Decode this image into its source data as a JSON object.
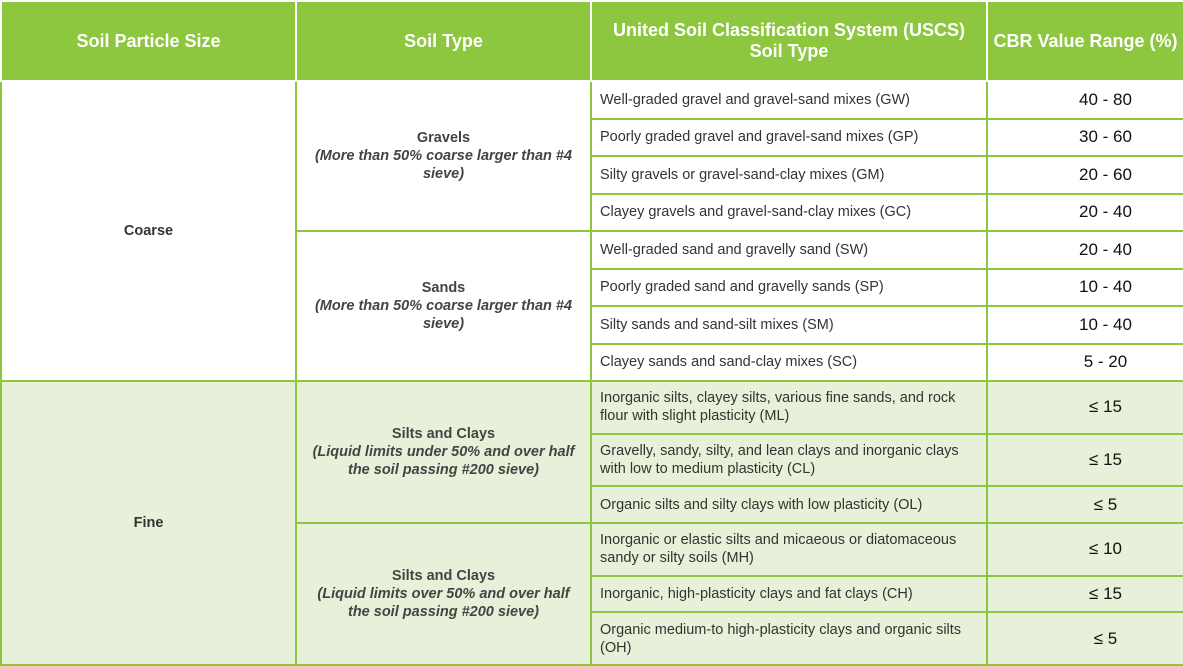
{
  "headers": {
    "particle_size": "Soil Particle Size",
    "soil_type": "Soil Type",
    "uscs": "United Soil Classification System (USCS) Soil Type",
    "cbr": "CBR Value Range (%)"
  },
  "groups": {
    "coarse": "Coarse",
    "fine": "Fine"
  },
  "types": {
    "gravels": {
      "title": "Gravels",
      "note": "(More than 50% coarse larger than #4 sieve)"
    },
    "sands": {
      "title": "Sands",
      "note": "(More than 50% coarse larger than #4 sieve)"
    },
    "silts_low": {
      "title": "Silts and Clays",
      "note": "(Liquid limits under 50% and over half the soil passing #200 sieve)"
    },
    "silts_high": {
      "title": "Silts and Clays",
      "note": "(Liquid limits over 50% and over half the soil passing #200 sieve)"
    }
  },
  "rows": [
    {
      "uscs": "Well-graded gravel and gravel-sand mixes (GW)",
      "cbr": "40 - 80"
    },
    {
      "uscs": "Poorly graded gravel and gravel-sand mixes (GP)",
      "cbr": "30 - 60"
    },
    {
      "uscs": "Silty gravels or gravel-sand-clay mixes (GM)",
      "cbr": "20 - 60"
    },
    {
      "uscs": "Clayey gravels and gravel-sand-clay mixes (GC)",
      "cbr": "20 - 40"
    },
    {
      "uscs": "Well-graded sand and gravelly sand (SW)",
      "cbr": "20 - 40"
    },
    {
      "uscs": "Poorly graded sand and gravelly sands (SP)",
      "cbr": "10 - 40"
    },
    {
      "uscs": "Silty sands and sand-silt mixes (SM)",
      "cbr": "10 - 40"
    },
    {
      "uscs": "Clayey sands and sand-clay mixes (SC)",
      "cbr": "5 - 20"
    },
    {
      "uscs": "Inorganic silts, clayey silts, various fine sands, and rock flour with slight plasticity (ML)",
      "cbr": "≤ 15"
    },
    {
      "uscs": "Gravelly, sandy, silty, and lean clays and inorganic clays with low to medium plasticity (CL)",
      "cbr": "≤ 15"
    },
    {
      "uscs": "Organic silts and silty clays with low plasticity (OL)",
      "cbr": "≤ 5"
    },
    {
      "uscs": "Inorganic or elastic silts and micaeous or diatomaceous sandy or silty soils (MH)",
      "cbr": "≤ 10"
    },
    {
      "uscs": "Inorganic, high-plasticity clays and fat clays (CH)",
      "cbr": "≤ 15"
    },
    {
      "uscs": "Organic medium-to high-plasticity clays and organic silts (OH)",
      "cbr": "≤ 5"
    }
  ]
}
